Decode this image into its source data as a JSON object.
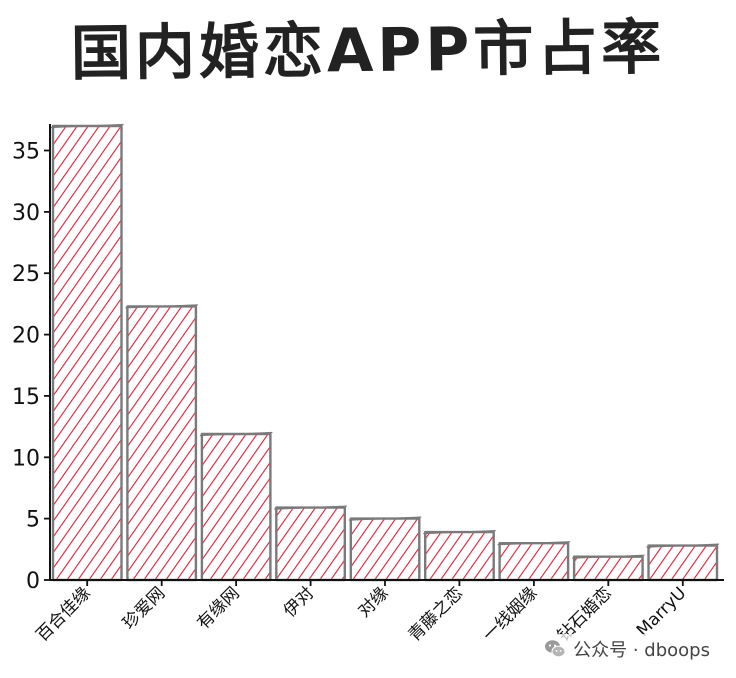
{
  "chart_data": {
    "type": "bar",
    "title": "国内婚恋APP市占率",
    "categories": [
      "百合佳缘",
      "珍爱网",
      "有缘网",
      "伊对",
      "对缘",
      "青藤之恋",
      "一线姻缘",
      "钻石婚恋",
      "MarryU"
    ],
    "values": [
      37.0,
      22.3,
      11.9,
      5.9,
      5.0,
      3.9,
      3.0,
      1.9,
      2.8
    ],
    "ylim": [
      0,
      37
    ],
    "yticks": [
      "0",
      "5",
      "10",
      "15",
      "20",
      "25",
      "30",
      "35"
    ],
    "xlabel": "",
    "ylabel": "",
    "grid": false,
    "colors": {
      "hatch": "#d9213a",
      "edge": "#7a7a7a",
      "axis": "#111111"
    },
    "style": "xkcd hand-drawn, diagonal hatch fill"
  },
  "watermark": {
    "text": "公众号 · dboops",
    "icon": "wechat-icon"
  }
}
